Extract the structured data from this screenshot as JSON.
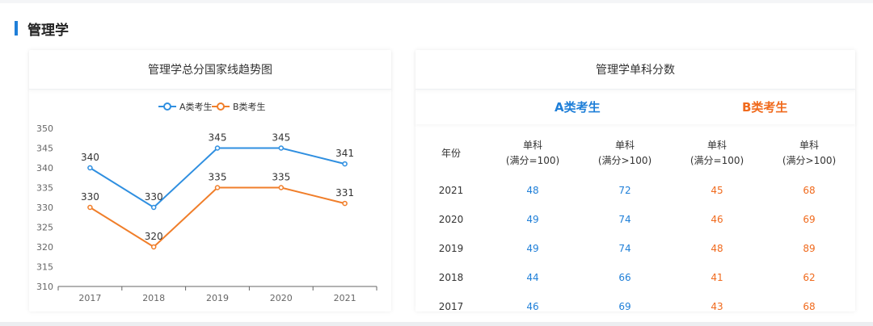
{
  "section": {
    "title": "管理学"
  },
  "left_panel": {
    "title": "管理学总分国家线趋势图"
  },
  "right_panel": {
    "title": "管理学单科分数",
    "group_a": "A类考生",
    "group_b": "B类考生",
    "columns": [
      {
        "label": "年份"
      },
      {
        "label1": "单科",
        "label2": "(满分=100)"
      },
      {
        "label1": "单科",
        "label2": "(满分>100)"
      },
      {
        "label1": "单科",
        "label2": "(满分=100)"
      },
      {
        "label1": "单科",
        "label2": "(满分>100)"
      }
    ],
    "rows": [
      {
        "year": "2021",
        "a100": "48",
        "a_gt100": "72",
        "b100": "45",
        "b_gt100": "68"
      },
      {
        "year": "2020",
        "a100": "49",
        "a_gt100": "74",
        "b100": "46",
        "b_gt100": "69"
      },
      {
        "year": "2019",
        "a100": "49",
        "a_gt100": "74",
        "b100": "48",
        "b_gt100": "89"
      },
      {
        "year": "2018",
        "a100": "44",
        "a_gt100": "66",
        "b100": "41",
        "b_gt100": "62"
      },
      {
        "year": "2017",
        "a100": "46",
        "a_gt100": "69",
        "b100": "43",
        "b_gt100": "68"
      }
    ]
  },
  "colors": {
    "series_a": "#2f8fe0",
    "series_b": "#f07e2a"
  },
  "chart_data": {
    "type": "line",
    "title": "管理学总分国家线趋势图",
    "categories": [
      "2017",
      "2018",
      "2019",
      "2020",
      "2021"
    ],
    "series": [
      {
        "name": "A类考生",
        "values": [
          340,
          330,
          345,
          345,
          341
        ]
      },
      {
        "name": "B类考生",
        "values": [
          330,
          320,
          335,
          335,
          331
        ]
      }
    ],
    "yticks": [
      "350",
      "345",
      "340",
      "335",
      "330",
      "325",
      "320",
      "315",
      "310"
    ],
    "ylim": [
      310,
      350
    ],
    "legend": "top-center",
    "grid": false
  }
}
